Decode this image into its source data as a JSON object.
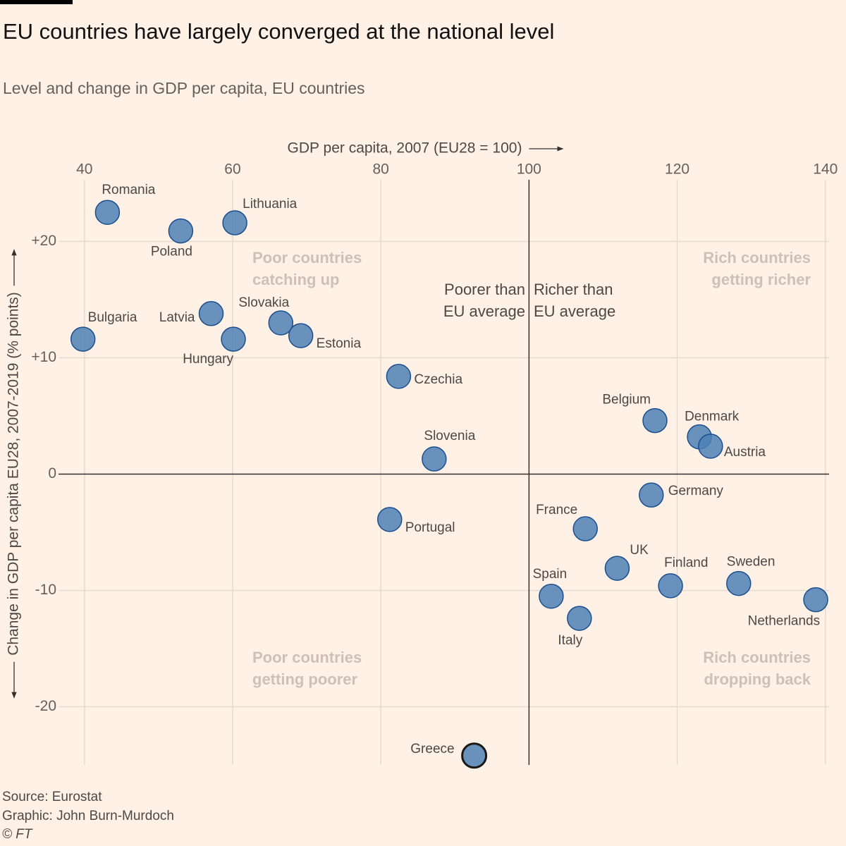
{
  "chart_data": {
    "type": "scatter",
    "title": "EU countries have largely converged at the national level",
    "subtitle": "Level and change in GDP per capita, EU countries",
    "xlabel": "GDP per capita, 2007 (EU28 = 100)",
    "ylabel": "Change in GDP per capita EU28, 2007-2019 (% points)",
    "xlim": [
      36.5,
      140.5
    ],
    "ylim": [
      -25,
      25.3
    ],
    "xticks": [
      40,
      60,
      80,
      100,
      120,
      140
    ],
    "xtick_labels": [
      "40",
      "60",
      "80",
      "100",
      "120",
      "140"
    ],
    "yticks": [
      20,
      10,
      0,
      -10,
      -20
    ],
    "ytick_labels": [
      "+20",
      "+10",
      "0",
      "-10",
      "-20"
    ],
    "grid": true,
    "reference_lines": {
      "x": 100,
      "y": 0
    },
    "points": [
      {
        "name": "Romania",
        "x": 43.1,
        "y": 22.5
      },
      {
        "name": "Poland",
        "x": 53.0,
        "y": 20.9
      },
      {
        "name": "Lithuania",
        "x": 60.3,
        "y": 21.6
      },
      {
        "name": "Bulgaria",
        "x": 39.8,
        "y": 11.6
      },
      {
        "name": "Latvia",
        "x": 57.1,
        "y": 13.8
      },
      {
        "name": "Hungary",
        "x": 60.1,
        "y": 11.6
      },
      {
        "name": "Slovakia",
        "x": 66.5,
        "y": 13.0
      },
      {
        "name": "Estonia",
        "x": 69.2,
        "y": 11.9
      },
      {
        "name": "Czechia",
        "x": 82.4,
        "y": 8.4
      },
      {
        "name": "Slovenia",
        "x": 87.2,
        "y": 1.3
      },
      {
        "name": "Portugal",
        "x": 81.2,
        "y": -3.9
      },
      {
        "name": "Greece",
        "x": 92.6,
        "y": -24.2,
        "highlighted": true
      },
      {
        "name": "Belgium",
        "x": 117.0,
        "y": 4.6
      },
      {
        "name": "Denmark",
        "x": 123.0,
        "y": 3.2
      },
      {
        "name": "Austria",
        "x": 124.5,
        "y": 2.4
      },
      {
        "name": "Germany",
        "x": 116.5,
        "y": -1.8
      },
      {
        "name": "France",
        "x": 107.6,
        "y": -4.7
      },
      {
        "name": "UK",
        "x": 111.9,
        "y": -8.1
      },
      {
        "name": "Finland",
        "x": 119.1,
        "y": -9.6
      },
      {
        "name": "Sweden",
        "x": 128.3,
        "y": -9.4
      },
      {
        "name": "Netherlands",
        "x": 138.7,
        "y": -10.8
      },
      {
        "name": "Spain",
        "x": 103.0,
        "y": -10.5
      },
      {
        "name": "Italy",
        "x": 106.8,
        "y": -12.4
      }
    ],
    "annotations": {
      "quadrant_labels": [
        [
          "Poor countries",
          "catching up"
        ],
        [
          "Rich countries",
          "getting richer"
        ],
        [
          "Poor countries",
          "getting poorer"
        ],
        [
          "Rich countries",
          "dropping back"
        ]
      ],
      "reference_labels": [
        [
          "Poorer than",
          "EU average"
        ],
        [
          "Richer than",
          "EU average"
        ]
      ]
    }
  },
  "footer": {
    "source": "Source: Eurostat",
    "credit": "Graphic: John Burn-Murdoch",
    "copyright": "© FT"
  },
  "colors": {
    "background": "#FFF1E5",
    "point_fill": "#4E80B5",
    "point_stroke": "#1B4E8F",
    "highlight_stroke": "#1A1817",
    "grid": "#E6D9CE",
    "reference_line": "#33302E"
  }
}
